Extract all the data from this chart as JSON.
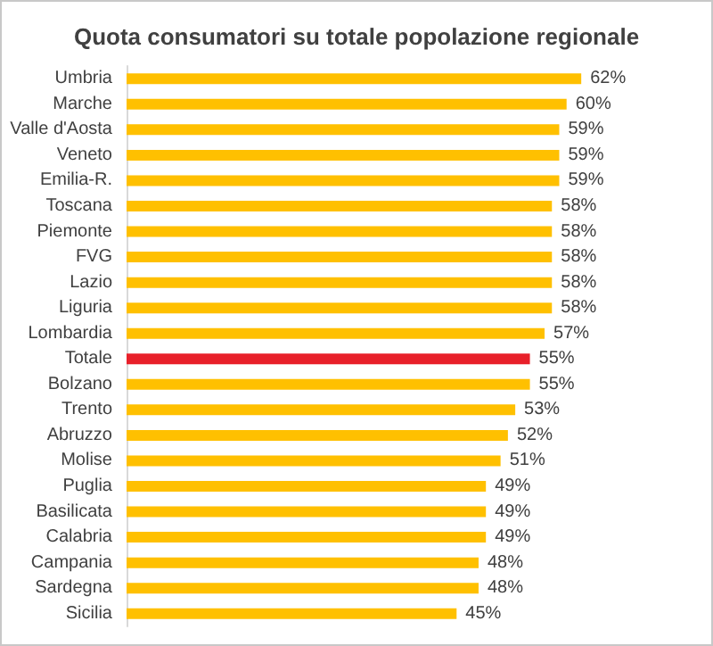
{
  "chart_data": {
    "type": "bar",
    "orientation": "horizontal",
    "title": "Quota consumatori su totale popolazione regionale",
    "categories": [
      "Umbria",
      "Marche",
      "Valle d'Aosta",
      "Veneto",
      "Emilia-R.",
      "Toscana",
      "Piemonte",
      "FVG",
      "Lazio",
      "Liguria",
      "Lombardia",
      "Totale",
      "Bolzano",
      "Trento",
      "Abruzzo",
      "Molise",
      "Puglia",
      "Basilicata",
      "Calabria",
      "Campania",
      "Sardegna",
      "Sicilia"
    ],
    "values": [
      62,
      60,
      59,
      59,
      59,
      58,
      58,
      58,
      58,
      58,
      57,
      55,
      55,
      53,
      52,
      51,
      49,
      49,
      49,
      48,
      48,
      45
    ],
    "value_labels": [
      "62%",
      "60%",
      "59%",
      "59%",
      "59%",
      "58%",
      "58%",
      "58%",
      "58%",
      "58%",
      "57%",
      "55%",
      "55%",
      "53%",
      "52%",
      "51%",
      "49%",
      "49%",
      "49%",
      "48%",
      "48%",
      "45%"
    ],
    "colors": [
      "#ffc000",
      "#ffc000",
      "#ffc000",
      "#ffc000",
      "#ffc000",
      "#ffc000",
      "#ffc000",
      "#ffc000",
      "#ffc000",
      "#ffc000",
      "#ffc000",
      "#e8202a",
      "#ffc000",
      "#ffc000",
      "#ffc000",
      "#ffc000",
      "#ffc000",
      "#ffc000",
      "#ffc000",
      "#ffc000",
      "#ffc000",
      "#ffc000"
    ]
  }
}
